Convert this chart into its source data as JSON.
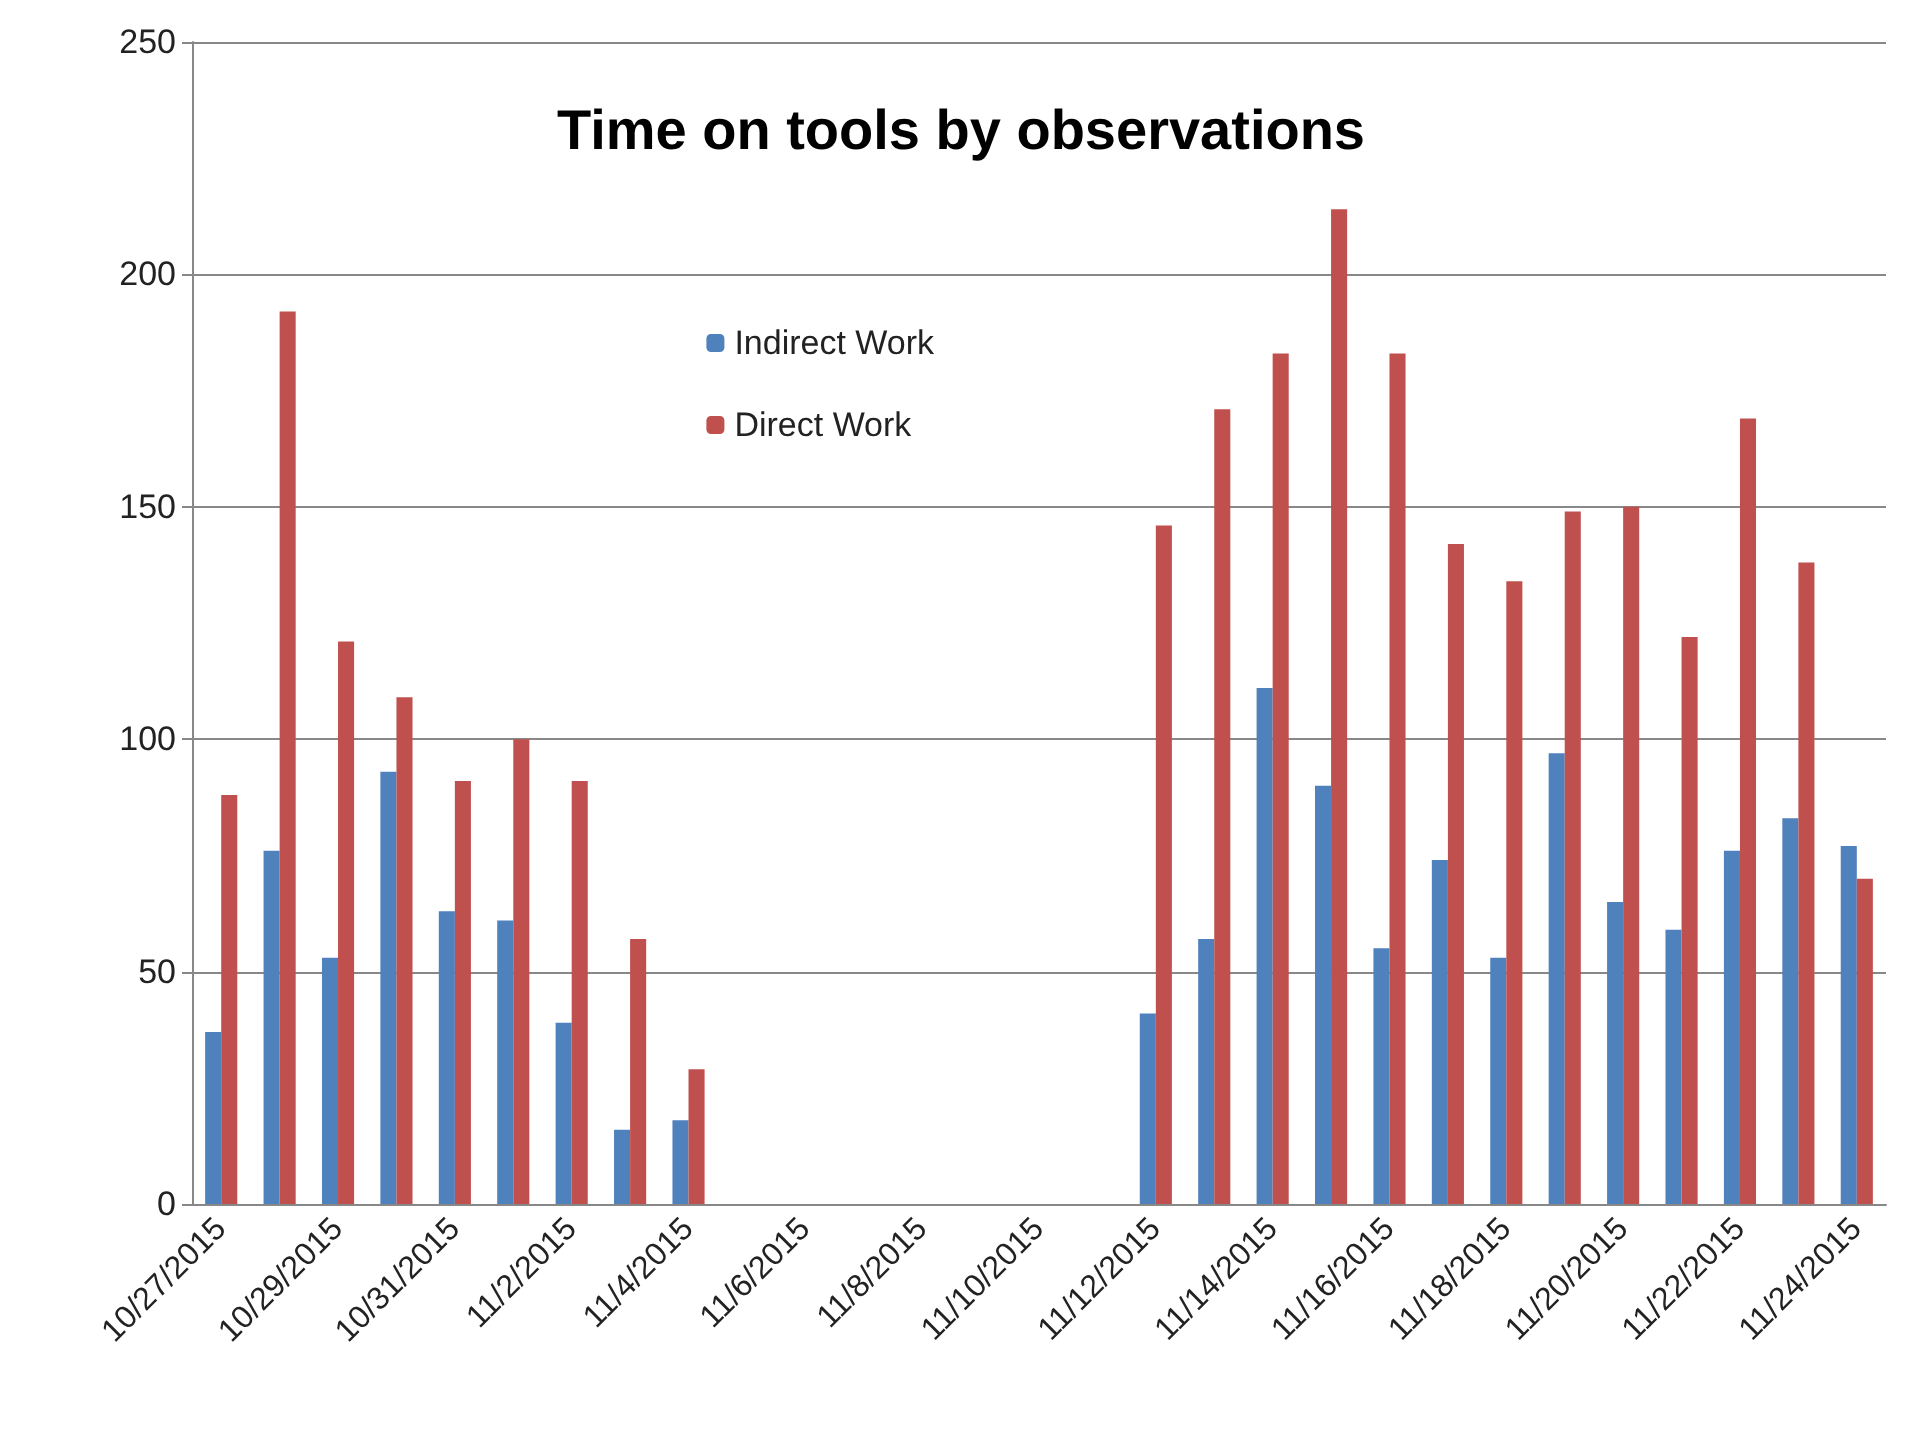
{
  "chart_data": {
    "type": "bar",
    "title": "Time on tools by observations",
    "categories": [
      "10/27/2015",
      null,
      "10/29/2015",
      null,
      "10/31/2015",
      null,
      "11/2/2015",
      null,
      "11/4/2015",
      null,
      "11/6/2015",
      null,
      "11/8/2015",
      null,
      "11/10/2015",
      null,
      "11/12/2015",
      null,
      "11/14/2015",
      null,
      "11/16/2015",
      null,
      "11/18/2015",
      null,
      "11/20/2015",
      null,
      "11/22/2015",
      null,
      "11/24/2015"
    ],
    "series": [
      {
        "name": "Indirect Work",
        "color": "#4f81bd",
        "values": [
          37,
          76,
          53,
          93,
          63,
          61,
          39,
          16,
          18,
          null,
          null,
          null,
          null,
          null,
          null,
          null,
          41,
          57,
          111,
          90,
          55,
          74,
          53,
          97,
          65,
          59,
          76,
          83,
          77
        ]
      },
      {
        "name": "Direct Work",
        "color": "#c0504d",
        "values": [
          88,
          192,
          121,
          109,
          91,
          100,
          91,
          57,
          29,
          null,
          null,
          null,
          null,
          null,
          null,
          null,
          146,
          171,
          183,
          214,
          183,
          142,
          134,
          149,
          150,
          122,
          169,
          138,
          70
        ]
      }
    ],
    "ylim": [
      0,
      250
    ],
    "yticks": [
      0,
      50,
      100,
      150,
      200,
      250
    ],
    "grid": "y",
    "legend": "top"
  }
}
